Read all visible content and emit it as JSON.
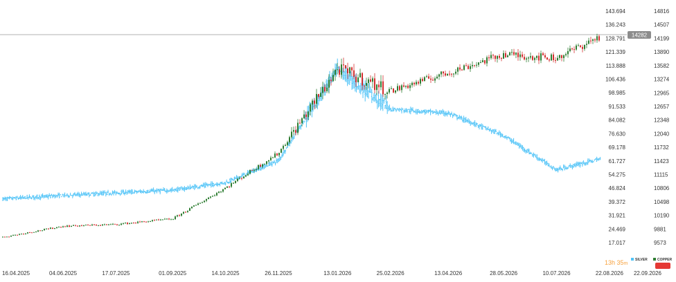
{
  "chart_data": {
    "type": "line",
    "title": "",
    "x_start": "16.04.2025",
    "x_end": "22.09.2026",
    "x_ticks": [
      "16.04.2025",
      "04.06.2025",
      "17.07.2025",
      "01.09.2025",
      "14.10.2025",
      "26.11.2025",
      "13.01.2026",
      "25.02.2026",
      "13.04.2026",
      "28.05.2026",
      "10.07.2026",
      "22.08.2026",
      "22.09.2026"
    ],
    "left_axis": {
      "ticks": [
        "143.694",
        "136.243",
        "128.791",
        "121.339",
        "113.888",
        "106.436",
        "98.985",
        "91.533",
        "84.082",
        "76.630",
        "69.178",
        "61.727",
        "54.275",
        "46.824",
        "39.372",
        "31.921",
        "24.469",
        "17.017"
      ],
      "ylim": [
        17.017,
        143.694
      ]
    },
    "right_axis": {
      "ticks": [
        "14816",
        "14507",
        "14199",
        "13890",
        "13582",
        "13274",
        "12965",
        "12657",
        "12348",
        "12040",
        "11732",
        "11423",
        "11115",
        "10806",
        "10498",
        "10190",
        "9881",
        "9573"
      ],
      "ylim": [
        9573,
        14816
      ]
    },
    "current_price_label": "14282",
    "countdown": {
      "main": "13h 35",
      "unit": "m"
    },
    "series": [
      {
        "name": "SILVER",
        "style": "candlestick",
        "axis": "left",
        "up_color": "#2e7d32",
        "down_color": "#d32f2f",
        "x": [
          "16.04.2025",
          "04.06.2025",
          "17.07.2025",
          "01.09.2025",
          "14.10.2025",
          "26.11.2025",
          "13.01.2026",
          "25.02.2026",
          "13.04.2026",
          "28.05.2026",
          "10.07.2026",
          "15.08.2026"
        ],
        "values": [
          20,
          26,
          27,
          30,
          47,
          66,
          112,
          100,
          110,
          120,
          118,
          130
        ]
      },
      {
        "name": "COPPER",
        "style": "ohlc-bars",
        "axis": "right",
        "color": "#4fc3f7",
        "x": [
          "16.04.2025",
          "04.06.2025",
          "17.07.2025",
          "01.09.2025",
          "14.10.2025",
          "26.11.2025",
          "13.01.2026",
          "25.02.2026",
          "13.04.2026",
          "28.05.2026",
          "10.07.2026",
          "15.08.2026"
        ],
        "values": [
          10560,
          10640,
          10700,
          10760,
          10930,
          11430,
          13500,
          12600,
          12500,
          12000,
          11220,
          11470
        ]
      }
    ],
    "grid": false,
    "legend_position": "bottom-right"
  },
  "colors": {
    "silver_up": "#2e7d32",
    "silver_down": "#d32f2f",
    "copper": "#4fc3f7",
    "price_line": "#b0b0b0",
    "price_tag": "#8c8c8c",
    "countdown": "#f7a23e",
    "legend_badge": "#e53935"
  }
}
